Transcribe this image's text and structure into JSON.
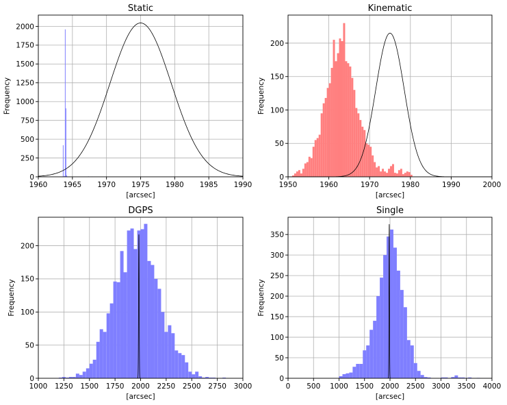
{
  "chart_data": [
    {
      "type": "bar",
      "title": "Static",
      "xlabel": "[arcsec]",
      "ylabel": "Frequency",
      "xlim": [
        1960,
        1990
      ],
      "ylim": [
        0,
        2150
      ],
      "xticks": [
        1960,
        1965,
        1970,
        1975,
        1980,
        1985,
        1990
      ],
      "yticks": [
        0,
        250,
        500,
        750,
        1000,
        1250,
        1500,
        1750,
        2000
      ],
      "grid": true,
      "histogram": {
        "color": "#7f7fff",
        "bin_width": 0.1,
        "bins": [
          [
            1963.6,
            420
          ],
          [
            1963.7,
            5
          ],
          [
            1963.8,
            10
          ],
          [
            1963.9,
            1960
          ],
          [
            1964.0,
            910
          ],
          [
            1964.1,
            20
          ],
          [
            1967.3,
            6
          ],
          [
            1967.8,
            5
          ]
        ]
      },
      "curve": {
        "color": "#000000",
        "mu": 1975,
        "sigma": 4.5,
        "amp": 2045,
        "x_range": [
          1960,
          1990
        ]
      }
    },
    {
      "type": "bar",
      "title": "Kinematic",
      "xlabel": "[arcsec]",
      "ylabel": "Frequency",
      "xlim": [
        1950,
        2000
      ],
      "ylim": [
        0,
        242
      ],
      "xticks": [
        1950,
        1960,
        1970,
        1980,
        1990,
        2000
      ],
      "yticks": [
        0,
        50,
        100,
        150,
        200
      ],
      "grid": true,
      "histogram": {
        "color": "#ff7f7f",
        "bin_width": 0.5,
        "bins": [
          [
            1951.0,
            2
          ],
          [
            1951.5,
            5
          ],
          [
            1952.0,
            8
          ],
          [
            1952.5,
            10
          ],
          [
            1953.0,
            5
          ],
          [
            1953.5,
            12
          ],
          [
            1954.0,
            20
          ],
          [
            1954.5,
            22
          ],
          [
            1955.0,
            30
          ],
          [
            1955.5,
            28
          ],
          [
            1956.0,
            45
          ],
          [
            1956.5,
            55
          ],
          [
            1957.0,
            58
          ],
          [
            1957.5,
            63
          ],
          [
            1958.0,
            95
          ],
          [
            1958.5,
            110
          ],
          [
            1959.0,
            118
          ],
          [
            1959.5,
            133
          ],
          [
            1960.0,
            140
          ],
          [
            1960.5,
            163
          ],
          [
            1961.0,
            205
          ],
          [
            1961.5,
            173
          ],
          [
            1962.0,
            185
          ],
          [
            1962.5,
            207
          ],
          [
            1963.0,
            203
          ],
          [
            1963.5,
            230
          ],
          [
            1964.0,
            173
          ],
          [
            1964.5,
            170
          ],
          [
            1965.0,
            165
          ],
          [
            1965.5,
            148
          ],
          [
            1966.0,
            130
          ],
          [
            1966.5,
            103
          ],
          [
            1967.0,
            95
          ],
          [
            1967.5,
            85
          ],
          [
            1968.0,
            75
          ],
          [
            1968.5,
            70
          ],
          [
            1969.0,
            50
          ],
          [
            1969.5,
            48
          ],
          [
            1970.0,
            45
          ],
          [
            1970.5,
            32
          ],
          [
            1971.0,
            22
          ],
          [
            1971.5,
            14
          ],
          [
            1972.0,
            16
          ],
          [
            1972.5,
            8
          ],
          [
            1973.0,
            12
          ],
          [
            1973.5,
            8
          ],
          [
            1974.0,
            6
          ],
          [
            1974.5,
            12
          ],
          [
            1975.0,
            16
          ],
          [
            1975.5,
            19
          ],
          [
            1976.0,
            6
          ],
          [
            1976.5,
            5
          ],
          [
            1977.0,
            10
          ],
          [
            1977.5,
            12
          ],
          [
            1978.0,
            4
          ],
          [
            1978.5,
            6
          ],
          [
            1979.0,
            8
          ],
          [
            1979.5,
            7
          ],
          [
            1980.0,
            3
          ]
        ]
      },
      "curve": {
        "color": "#000000",
        "mu": 1975,
        "sigma": 3.5,
        "amp": 215,
        "x_range": [
          1950,
          2000
        ]
      }
    },
    {
      "type": "bar",
      "title": "DGPS",
      "xlabel": "[arcsec]",
      "ylabel": "Frequency",
      "xlim": [
        1000,
        3000
      ],
      "ylim": [
        0,
        243
      ],
      "xticks": [
        1000,
        1250,
        1500,
        1750,
        2000,
        2250,
        2500,
        2750,
        3000
      ],
      "yticks": [
        0,
        50,
        100,
        150,
        200
      ],
      "grid": true,
      "histogram": {
        "color": "#7f7fff",
        "bin_width": 33.3,
        "bins": [
          [
            1200,
            1
          ],
          [
            1233,
            2
          ],
          [
            1267,
            1
          ],
          [
            1300,
            2
          ],
          [
            1333,
            2
          ],
          [
            1367,
            7
          ],
          [
            1400,
            5
          ],
          [
            1433,
            10
          ],
          [
            1467,
            15
          ],
          [
            1500,
            22
          ],
          [
            1533,
            28
          ],
          [
            1567,
            55
          ],
          [
            1600,
            74
          ],
          [
            1633,
            70
          ],
          [
            1667,
            98
          ],
          [
            1700,
            113
          ],
          [
            1733,
            146
          ],
          [
            1767,
            145
          ],
          [
            1800,
            192
          ],
          [
            1833,
            160
          ],
          [
            1867,
            223
          ],
          [
            1900,
            226
          ],
          [
            1933,
            195
          ],
          [
            1967,
            223
          ],
          [
            2000,
            225
          ],
          [
            2033,
            233
          ],
          [
            2067,
            177
          ],
          [
            2100,
            171
          ],
          [
            2133,
            150
          ],
          [
            2167,
            135
          ],
          [
            2200,
            100
          ],
          [
            2233,
            70
          ],
          [
            2267,
            80
          ],
          [
            2300,
            68
          ],
          [
            2333,
            42
          ],
          [
            2367,
            38
          ],
          [
            2400,
            35
          ],
          [
            2433,
            24
          ],
          [
            2467,
            10
          ],
          [
            2500,
            6
          ],
          [
            2533,
            10
          ],
          [
            2567,
            3
          ],
          [
            2600,
            1
          ],
          [
            2633,
            2
          ],
          [
            2667,
            1
          ],
          [
            2700,
            1
          ],
          [
            2800,
            1
          ]
        ]
      },
      "curve": {
        "color": "#000000",
        "mu": 1983,
        "sigma": 3,
        "amp": 217,
        "x_range": [
          1960,
          2006
        ]
      }
    },
    {
      "type": "bar",
      "title": "Single",
      "xlabel": "[arcsec]",
      "ylabel": "Frequency",
      "xlim": [
        0,
        4000
      ],
      "ylim": [
        0,
        392
      ],
      "xticks": [
        0,
        500,
        1000,
        1500,
        2000,
        2500,
        3000,
        3500,
        4000
      ],
      "yticks": [
        0,
        50,
        100,
        150,
        200,
        250,
        300,
        350
      ],
      "grid": true,
      "histogram": {
        "color": "#7f7fff",
        "bin_width": 66.7,
        "bins": [
          [
            1000,
            5
          ],
          [
            1067,
            10
          ],
          [
            1133,
            12
          ],
          [
            1200,
            14
          ],
          [
            1267,
            28
          ],
          [
            1333,
            35
          ],
          [
            1400,
            35
          ],
          [
            1467,
            68
          ],
          [
            1533,
            80
          ],
          [
            1600,
            118
          ],
          [
            1667,
            140
          ],
          [
            1733,
            200
          ],
          [
            1800,
            245
          ],
          [
            1867,
            300
          ],
          [
            1933,
            345
          ],
          [
            2000,
            362
          ],
          [
            2067,
            318
          ],
          [
            2133,
            262
          ],
          [
            2200,
            215
          ],
          [
            2267,
            173
          ],
          [
            2333,
            93
          ],
          [
            2400,
            80
          ],
          [
            2467,
            37
          ],
          [
            2533,
            18
          ],
          [
            2600,
            8
          ],
          [
            2667,
            3
          ],
          [
            2733,
            2
          ],
          [
            3000,
            2
          ],
          [
            3067,
            2
          ],
          [
            3200,
            3
          ],
          [
            3267,
            7
          ],
          [
            3333,
            2
          ],
          [
            3400,
            2
          ],
          [
            3467,
            1
          ],
          [
            3533,
            2
          ],
          [
            3700,
            1
          ]
        ]
      },
      "curve": {
        "color": "#000000",
        "mu": 1985,
        "sigma": 5,
        "amp": 375,
        "x_range": [
          1955,
          2015
        ]
      }
    }
  ]
}
